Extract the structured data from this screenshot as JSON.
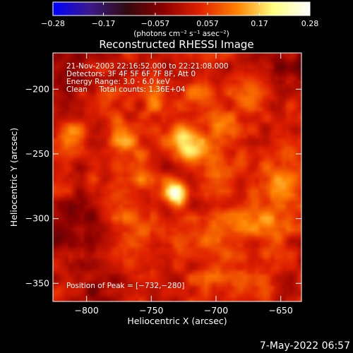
{
  "chart_data": {
    "type": "heatmap",
    "title": "Reconstructed RHESSI Image",
    "xlabel": "Heliocentric X (arcsec)",
    "ylabel": "Heliocentric Y (arcsec)",
    "xlim": [
      -826,
      -634
    ],
    "ylim": [
      -364,
      -172
    ],
    "x_ticks": [
      -800,
      -750,
      -700,
      -650
    ],
    "x_tick_labels": [
      "−800",
      "−750",
      "−700",
      "−650"
    ],
    "y_ticks": [
      -200,
      -250,
      -300,
      -350
    ],
    "y_tick_labels": [
      "−200",
      "−250",
      "−300",
      "−350"
    ],
    "colorbar": {
      "min": -0.28,
      "max": 0.28,
      "ticks": [
        -0.28,
        -0.17,
        -0.057,
        0.057,
        0.17,
        0.28
      ],
      "tick_labels": [
        "−0.28",
        "−0.17",
        "−0.057",
        "0.057",
        "0.17",
        "0.28"
      ],
      "label": "(photons cm⁻² s⁻¹ asec⁻²)"
    },
    "annotations": [
      "21-Nov-2003 22:16:52.000 to 22:21:08.000",
      "Detectors: 3F 4F 5F 6F 7F 8F, Att 0",
      "Energy Range: 3.0 - 6.0 keV",
      "Clean     Total counts: 1.36E+04"
    ],
    "peak_label": "Position of Peak = [−732,−280]",
    "peak": {
      "x": -732,
      "y": -280,
      "value": 0.28
    },
    "sources": [
      {
        "x": -732,
        "y": -280,
        "amp": 0.27,
        "sigma": 6
      },
      {
        "x": -722,
        "y": -240,
        "amp": 0.2,
        "sigma": 9
      },
      {
        "x": -745,
        "y": -210,
        "amp": 0.08,
        "sigma": 10
      },
      {
        "x": -715,
        "y": -205,
        "amp": 0.07,
        "sigma": 10
      },
      {
        "x": -810,
        "y": -235,
        "amp": 0.09,
        "sigma": 9
      },
      {
        "x": -790,
        "y": -210,
        "amp": 0.07,
        "sigma": 10
      },
      {
        "x": -770,
        "y": -240,
        "amp": 0.09,
        "sigma": 10
      },
      {
        "x": -760,
        "y": -265,
        "amp": 0.07,
        "sigma": 9
      },
      {
        "x": -700,
        "y": -265,
        "amp": 0.09,
        "sigma": 11
      },
      {
        "x": -690,
        "y": -230,
        "amp": 0.07,
        "sigma": 10
      },
      {
        "x": -670,
        "y": -205,
        "amp": 0.06,
        "sigma": 10
      },
      {
        "x": -650,
        "y": -275,
        "amp": 0.09,
        "sigma": 12
      },
      {
        "x": -655,
        "y": -305,
        "amp": 0.1,
        "sigma": 9
      },
      {
        "x": -680,
        "y": -300,
        "amp": 0.07,
        "sigma": 11
      },
      {
        "x": -705,
        "y": -310,
        "amp": 0.07,
        "sigma": 10
      },
      {
        "x": -735,
        "y": -310,
        "amp": 0.06,
        "sigma": 10
      },
      {
        "x": -765,
        "y": -305,
        "amp": 0.06,
        "sigma": 10
      },
      {
        "x": -780,
        "y": -280,
        "amp": 0.06,
        "sigma": 11
      },
      {
        "x": -760,
        "y": -330,
        "amp": 0.05,
        "sigma": 12
      },
      {
        "x": -700,
        "y": -340,
        "amp": 0.06,
        "sigma": 12
      },
      {
        "x": -670,
        "y": -345,
        "amp": 0.06,
        "sigma": 10
      },
      {
        "x": -650,
        "y": -240,
        "amp": 0.05,
        "sigma": 10
      },
      {
        "x": -800,
        "y": -290,
        "amp": -0.05,
        "sigma": 12
      },
      {
        "x": -815,
        "y": -315,
        "amp": -0.08,
        "sigma": 12
      },
      {
        "x": -812,
        "y": -190,
        "amp": -0.09,
        "sigma": 12
      },
      {
        "x": -640,
        "y": -185,
        "amp": -0.06,
        "sigma": 12
      },
      {
        "x": -790,
        "y": -355,
        "amp": -0.05,
        "sigma": 14
      }
    ],
    "background_level": 0.02,
    "colors": {
      "background": "#000000",
      "foreground": "#ffffff",
      "colormap_stops": [
        "#0000ff",
        "#3b1a8a",
        "#300a10",
        "#8b0000",
        "#e02000",
        "#ff8000",
        "#ffff80",
        "#ffffff"
      ]
    }
  },
  "footer": {
    "date": "7-May-2022 06:57"
  }
}
